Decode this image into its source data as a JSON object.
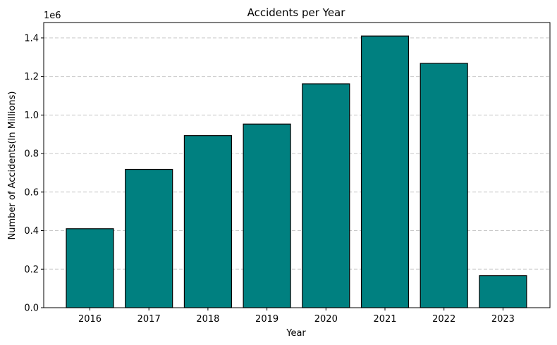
{
  "chart_data": {
    "type": "bar",
    "title": "Accidents per Year",
    "xlabel": "Year",
    "ylabel": "Number of Accidents(In Millions)",
    "y_offset_label": "1e6",
    "categories": [
      "2016",
      "2017",
      "2018",
      "2019",
      "2020",
      "2021",
      "2022",
      "2023"
    ],
    "values": [
      410000,
      718000,
      893000,
      953000,
      1162000,
      1410000,
      1268000,
      166000
    ],
    "ylim": [
      0,
      1480000
    ],
    "yticks": [
      0,
      200000,
      400000,
      600000,
      800000,
      1000000,
      1200000,
      1400000
    ],
    "ytick_labels": [
      "0.0",
      "0.2",
      "0.4",
      "0.6",
      "0.8",
      "1.0",
      "1.2",
      "1.4"
    ],
    "grid": "y-dashed",
    "bar_color": "#008080",
    "bar_edge_color": "#000000",
    "grid_color": "#c8c8c8"
  }
}
